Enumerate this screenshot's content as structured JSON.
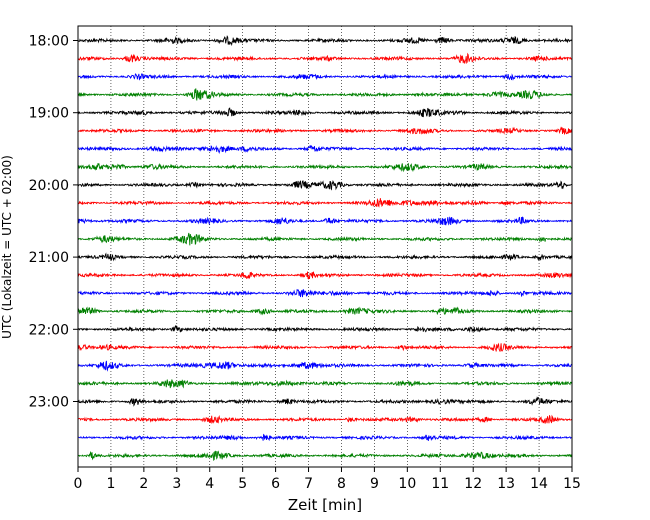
{
  "chart_data": {
    "type": "line",
    "title": "",
    "xlabel": "Zeit  [min]",
    "ylabel": "UTC (Lokalzeit = UTC + 02:00)",
    "xlim": [
      0,
      15
    ],
    "x_ticks": [
      0,
      1,
      2,
      3,
      4,
      5,
      6,
      7,
      8,
      9,
      10,
      11,
      12,
      13,
      14,
      15
    ],
    "x_grid": "dotted",
    "y_tick_labels": [
      "18:00",
      "19:00",
      "20:00",
      "21:00",
      "22:00",
      "23:00"
    ],
    "trace_interval_min": 15,
    "trace_start": "18:00",
    "trace_count": 24,
    "trace_colors": [
      "#000000",
      "#ff0000",
      "#0000ff",
      "#008000"
    ],
    "series": [
      {
        "start": "18:00",
        "color": "#000000"
      },
      {
        "start": "18:15",
        "color": "#ff0000"
      },
      {
        "start": "18:30",
        "color": "#0000ff"
      },
      {
        "start": "18:45",
        "color": "#008000"
      },
      {
        "start": "19:00",
        "color": "#000000"
      },
      {
        "start": "19:15",
        "color": "#ff0000"
      },
      {
        "start": "19:30",
        "color": "#0000ff"
      },
      {
        "start": "19:45",
        "color": "#008000"
      },
      {
        "start": "20:00",
        "color": "#000000"
      },
      {
        "start": "20:15",
        "color": "#ff0000"
      },
      {
        "start": "20:30",
        "color": "#0000ff"
      },
      {
        "start": "20:45",
        "color": "#008000"
      },
      {
        "start": "21:00",
        "color": "#000000"
      },
      {
        "start": "21:15",
        "color": "#ff0000"
      },
      {
        "start": "21:30",
        "color": "#0000ff"
      },
      {
        "start": "21:45",
        "color": "#008000"
      },
      {
        "start": "22:00",
        "color": "#000000"
      },
      {
        "start": "22:15",
        "color": "#ff0000"
      },
      {
        "start": "22:30",
        "color": "#0000ff"
      },
      {
        "start": "22:45",
        "color": "#008000"
      },
      {
        "start": "23:00",
        "color": "#000000"
      },
      {
        "start": "23:15",
        "color": "#ff0000"
      },
      {
        "start": "23:30",
        "color": "#0000ff"
      },
      {
        "start": "23:45",
        "color": "#008000"
      }
    ]
  }
}
